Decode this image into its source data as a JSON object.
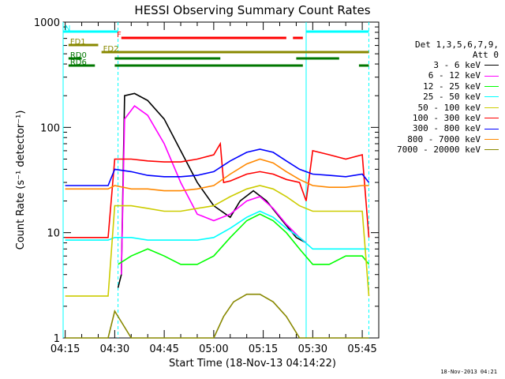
{
  "chart_data": {
    "type": "line",
    "title": "HESSI Observing Summary Count Rates",
    "ylabel": "Count Rate (s⁻¹ detector⁻¹)",
    "xlabel": "Start Time (18-Nov-13 04:14:22)",
    "y_scale": "log",
    "ylim": [
      1,
      1000
    ],
    "xlim_minutes": [
      "04:14:22",
      "05:50:00"
    ],
    "y_ticks": [
      "1",
      "10",
      "100",
      "1000"
    ],
    "x_ticks": [
      {
        "label": "04:15",
        "t": "04:15"
      },
      {
        "label": "04:30",
        "t": "04:30"
      },
      {
        "label": "04:45",
        "t": "04:45"
      },
      {
        "label": "05:00",
        "t": "05:00"
      },
      {
        "label": "05:15",
        "t": "05:15"
      },
      {
        "label": "05:30",
        "t": "05:30"
      },
      {
        "label": "05:45",
        "t": "05:45"
      }
    ],
    "legend_header": [
      "Det 1,3,5,6,7,9,",
      "Att 0"
    ],
    "series": [
      {
        "name": "3 - 6 keV",
        "color": "#000000",
        "points": [
          [
            "04:31",
            3
          ],
          [
            "04:32",
            4
          ],
          [
            "04:33",
            200
          ],
          [
            "04:36",
            210
          ],
          [
            "04:40",
            180
          ],
          [
            "04:45",
            120
          ],
          [
            "04:50",
            60
          ],
          [
            "04:55",
            30
          ],
          [
            "05:00",
            18
          ],
          [
            "05:05",
            14
          ],
          [
            "05:08",
            20
          ],
          [
            "05:12",
            25
          ],
          [
            "05:16",
            20
          ],
          [
            "05:20",
            14
          ],
          [
            "05:25",
            9
          ],
          [
            "05:28",
            8
          ]
        ]
      },
      {
        "name": "6 - 12 keV",
        "color": "#ff00ff",
        "points": [
          [
            "04:32",
            4
          ],
          [
            "04:33",
            120
          ],
          [
            "04:36",
            160
          ],
          [
            "04:40",
            130
          ],
          [
            "04:45",
            70
          ],
          [
            "04:50",
            30
          ],
          [
            "04:55",
            15
          ],
          [
            "05:00",
            13
          ],
          [
            "05:05",
            15
          ],
          [
            "05:10",
            20
          ],
          [
            "05:14",
            22
          ],
          [
            "05:18",
            17
          ],
          [
            "05:22",
            12
          ],
          [
            "05:26",
            9
          ],
          [
            "05:28",
            8
          ]
        ]
      },
      {
        "name": "12 - 25 keV",
        "color": "#00ff00",
        "points": [
          [
            "04:31",
            5
          ],
          [
            "04:35",
            6
          ],
          [
            "04:40",
            7
          ],
          [
            "04:45",
            6
          ],
          [
            "04:50",
            5
          ],
          [
            "04:55",
            5
          ],
          [
            "05:00",
            6
          ],
          [
            "05:05",
            9
          ],
          [
            "05:10",
            13
          ],
          [
            "05:14",
            15
          ],
          [
            "05:18",
            13
          ],
          [
            "05:22",
            10
          ],
          [
            "05:26",
            7
          ],
          [
            "05:30",
            5
          ],
          [
            "05:35",
            5
          ],
          [
            "05:40",
            6
          ],
          [
            "05:45",
            6
          ],
          [
            "05:47",
            5
          ]
        ]
      },
      {
        "name": "25 - 50 keV",
        "color": "#00ffff",
        "points": [
          [
            "04:15",
            8.5
          ],
          [
            "04:22",
            8.5
          ],
          [
            "04:28",
            8.5
          ],
          [
            "04:30",
            9
          ],
          [
            "04:35",
            9
          ],
          [
            "04:40",
            8.5
          ],
          [
            "04:45",
            8.5
          ],
          [
            "04:50",
            8.5
          ],
          [
            "04:55",
            8.5
          ],
          [
            "05:00",
            9
          ],
          [
            "05:05",
            11
          ],
          [
            "05:10",
            14
          ],
          [
            "05:14",
            16
          ],
          [
            "05:18",
            14
          ],
          [
            "05:22",
            11
          ],
          [
            "05:26",
            9
          ],
          [
            "05:30",
            7
          ],
          [
            "05:35",
            7
          ],
          [
            "05:40",
            7
          ],
          [
            "05:45",
            7
          ],
          [
            "05:47",
            7
          ]
        ]
      },
      {
        "name": "50 - 100 keV",
        "color": "#cccc00",
        "points": [
          [
            "04:15",
            2.5
          ],
          [
            "04:28",
            2.5
          ],
          [
            "04:30",
            18
          ],
          [
            "04:35",
            18
          ],
          [
            "04:40",
            17
          ],
          [
            "04:45",
            16
          ],
          [
            "04:50",
            16
          ],
          [
            "04:55",
            17
          ],
          [
            "05:00",
            18
          ],
          [
            "05:05",
            22
          ],
          [
            "05:10",
            26
          ],
          [
            "05:14",
            28
          ],
          [
            "05:18",
            26
          ],
          [
            "05:22",
            22
          ],
          [
            "05:26",
            18
          ],
          [
            "05:30",
            16
          ],
          [
            "05:35",
            16
          ],
          [
            "05:40",
            16
          ],
          [
            "05:45",
            16
          ],
          [
            "05:47",
            2.5
          ]
        ]
      },
      {
        "name": "100 - 300 keV",
        "color": "#ff0000",
        "points": [
          [
            "04:15",
            9
          ],
          [
            "04:28",
            9
          ],
          [
            "04:30",
            50
          ],
          [
            "04:35",
            50
          ],
          [
            "04:40",
            48
          ],
          [
            "04:45",
            47
          ],
          [
            "04:50",
            47
          ],
          [
            "04:55",
            50
          ],
          [
            "05:00",
            55
          ],
          [
            "05:02",
            70
          ],
          [
            "05:03",
            30
          ],
          [
            "05:05",
            31
          ],
          [
            "05:10",
            36
          ],
          [
            "05:14",
            38
          ],
          [
            "05:18",
            36
          ],
          [
            "05:22",
            32
          ],
          [
            "05:26",
            30
          ],
          [
            "05:28",
            20
          ],
          [
            "05:30",
            60
          ],
          [
            "05:35",
            55
          ],
          [
            "05:40",
            50
          ],
          [
            "05:45",
            55
          ],
          [
            "05:47",
            9
          ]
        ]
      },
      {
        "name": "300 - 800 keV",
        "color": "#0000ff",
        "points": [
          [
            "04:15",
            28
          ],
          [
            "04:20",
            28
          ],
          [
            "04:28",
            28
          ],
          [
            "04:30",
            40
          ],
          [
            "04:35",
            38
          ],
          [
            "04:40",
            35
          ],
          [
            "04:45",
            34
          ],
          [
            "04:50",
            34
          ],
          [
            "04:55",
            35
          ],
          [
            "05:00",
            38
          ],
          [
            "05:05",
            48
          ],
          [
            "05:10",
            58
          ],
          [
            "05:14",
            62
          ],
          [
            "05:18",
            58
          ],
          [
            "05:22",
            48
          ],
          [
            "05:26",
            40
          ],
          [
            "05:30",
            36
          ],
          [
            "05:35",
            35
          ],
          [
            "05:40",
            34
          ],
          [
            "05:45",
            36
          ],
          [
            "05:47",
            30
          ]
        ]
      },
      {
        "name": "800 - 7000 keV",
        "color": "#ff8800",
        "points": [
          [
            "04:15",
            26
          ],
          [
            "04:28",
            26
          ],
          [
            "04:30",
            28
          ],
          [
            "04:35",
            26
          ],
          [
            "04:40",
            26
          ],
          [
            "04:45",
            25
          ],
          [
            "04:50",
            25
          ],
          [
            "04:55",
            26
          ],
          [
            "05:00",
            28
          ],
          [
            "05:05",
            36
          ],
          [
            "05:10",
            45
          ],
          [
            "05:14",
            50
          ],
          [
            "05:18",
            46
          ],
          [
            "05:22",
            38
          ],
          [
            "05:26",
            32
          ],
          [
            "05:30",
            28
          ],
          [
            "05:35",
            27
          ],
          [
            "05:40",
            27
          ],
          [
            "05:45",
            28
          ],
          [
            "05:47",
            28
          ]
        ]
      },
      {
        "name": "7000 - 20000 keV",
        "color": "#888800",
        "points": [
          [
            "04:15",
            1
          ],
          [
            "04:28",
            1
          ],
          [
            "04:30",
            1.8
          ],
          [
            "04:35",
            1
          ],
          [
            "05:00",
            1
          ],
          [
            "05:03",
            1.6
          ],
          [
            "05:06",
            2.2
          ],
          [
            "05:10",
            2.6
          ],
          [
            "05:14",
            2.6
          ],
          [
            "05:18",
            2.2
          ],
          [
            "05:22",
            1.6
          ],
          [
            "05:26",
            1
          ],
          [
            "05:47",
            1
          ]
        ]
      }
    ],
    "flags": [
      {
        "label": "N",
        "color": "#00ffff",
        "segments": [
          [
            "04:14:22",
            "04:31"
          ],
          [
            "05:28",
            "05:47"
          ]
        ]
      },
      {
        "label": "F",
        "color": "#ff0000",
        "segments": [
          [
            "04:32",
            "05:22"
          ],
          [
            "05:24",
            "05:27"
          ]
        ]
      },
      {
        "label": "FD1",
        "color": "#888800",
        "segments": [
          [
            "04:16",
            "04:25"
          ]
        ]
      },
      {
        "label": "FD2",
        "color": "#888800",
        "segments": [
          [
            "04:26",
            "05:47"
          ]
        ]
      },
      {
        "label": "RD0",
        "color": "#007700",
        "segments": [
          [
            "04:16",
            "04:20"
          ],
          [
            "04:30",
            "05:02"
          ],
          [
            "05:25",
            "05:38"
          ]
        ]
      },
      {
        "label": "RD6",
        "color": "#007700",
        "segments": [
          [
            "04:16",
            "04:24"
          ],
          [
            "04:30",
            "05:27"
          ],
          [
            "05:44",
            "05:47"
          ]
        ]
      }
    ],
    "saa_lines": [
      "04:14:22",
      "04:31",
      "05:28",
      "05:47"
    ],
    "grid": false,
    "legend_position": "right"
  },
  "stamp": "18-Nov-2013 04:21"
}
